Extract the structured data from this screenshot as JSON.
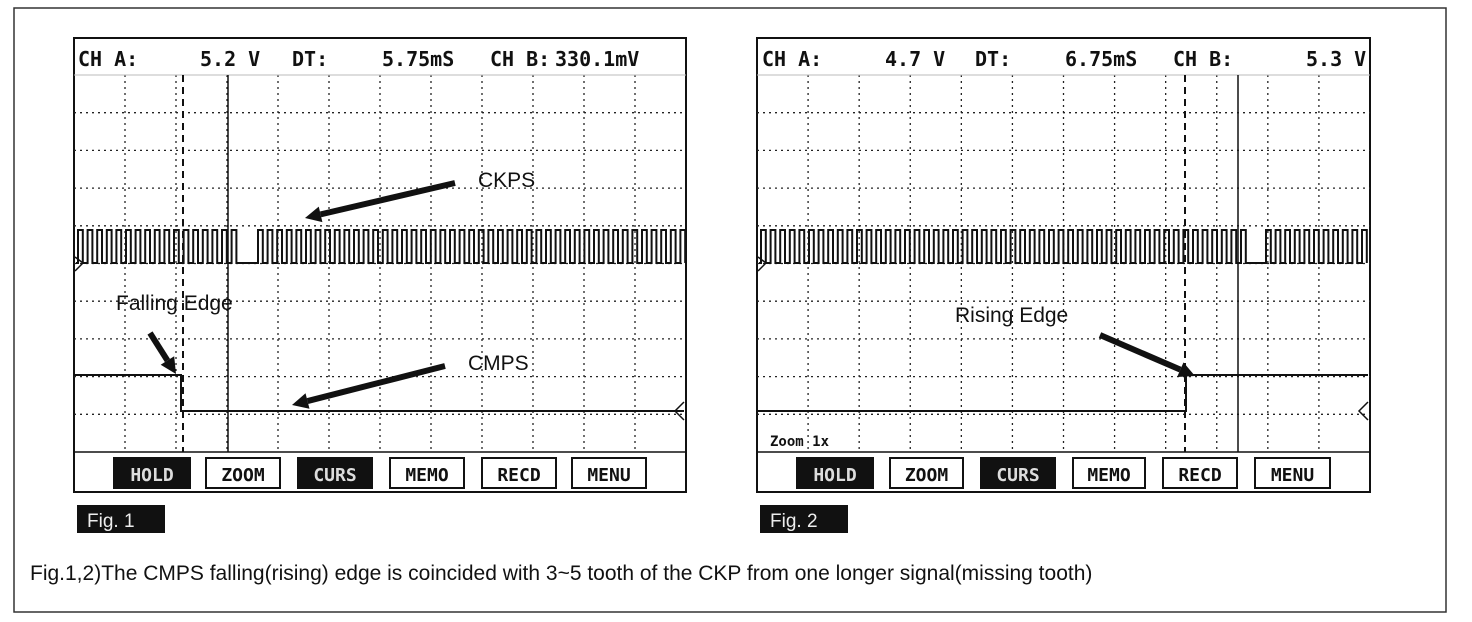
{
  "panels": [
    {
      "header": {
        "ch_a_label": "CH A:",
        "ch_a_value": "5.2 V",
        "dt_label": "DT:",
        "dt_value": "5.75mS",
        "ch_b_label": "CH B:",
        "ch_b_value": "330.1mV"
      },
      "annotations": [
        "CKPS",
        "Falling Edge",
        "CMPS"
      ],
      "buttons": [
        "HOLD",
        "ZOOM",
        "CURS",
        "MEMO",
        "RECD",
        "MENU"
      ],
      "figure_label": "Fig. 1"
    },
    {
      "header": {
        "ch_a_label": "CH A:",
        "ch_a_value": "4.7 V",
        "dt_label": "DT:",
        "dt_value": "6.75mS",
        "ch_b_label": "CH B:",
        "ch_b_value": "5.3 V"
      },
      "annotations": [
        "Rising Edge"
      ],
      "zoom": "Zoom 1x",
      "buttons": [
        "HOLD",
        "ZOOM",
        "CURS",
        "MEMO",
        "RECD",
        "MENU"
      ],
      "figure_label": "Fig. 2"
    }
  ],
  "caption": "Fig.1,2)The CMPS falling(rising) edge is coincided with 3~5 tooth of the CKP from one longer signal(missing tooth)"
}
